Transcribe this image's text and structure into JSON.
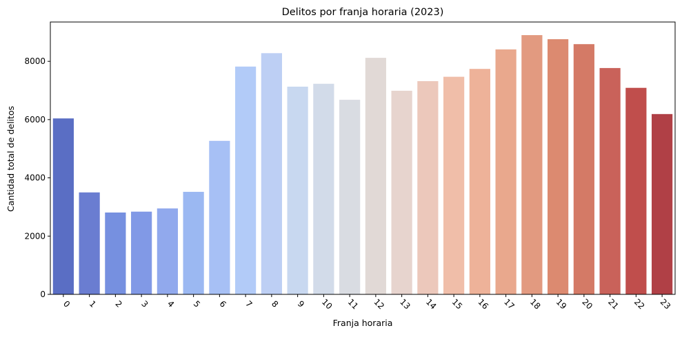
{
  "chart_data": {
    "type": "bar",
    "title": "Delitos por franja horaria (2023)",
    "xlabel": "Franja horaria",
    "ylabel": "Cantidad total de delitos",
    "categories": [
      "0",
      "1",
      "2",
      "3",
      "4",
      "5",
      "6",
      "7",
      "8",
      "9",
      "10",
      "11",
      "12",
      "13",
      "14",
      "15",
      "16",
      "17",
      "18",
      "19",
      "20",
      "21",
      "22",
      "23"
    ],
    "values": [
      6040,
      3500,
      2810,
      2840,
      2950,
      3520,
      5270,
      7820,
      8280,
      7130,
      7230,
      6680,
      8120,
      6990,
      7320,
      7470,
      7740,
      8410,
      8900,
      8760,
      8590,
      7770,
      7090,
      6190
    ],
    "colors": [
      "#5a6ec4",
      "#6a7dd1",
      "#7690e0",
      "#8199e6",
      "#91a9ed",
      "#9bb8f2",
      "#a7c0f5",
      "#b2cbf8",
      "#bdcff4",
      "#c8d8f0",
      "#d2dbe9",
      "#d9dce2",
      "#e1d9d6",
      "#e7d4ce",
      "#ecc8bb",
      "#f0bea9",
      "#eeb299",
      "#e9a88d",
      "#e29a80",
      "#dc8a70",
      "#d47a66",
      "#c9625a",
      "#c04e4c",
      "#b04046"
    ],
    "yticks": [
      0,
      2000,
      4000,
      6000,
      8000
    ],
    "ylim": [
      0,
      9350
    ],
    "grid": false,
    "legend": "none"
  }
}
